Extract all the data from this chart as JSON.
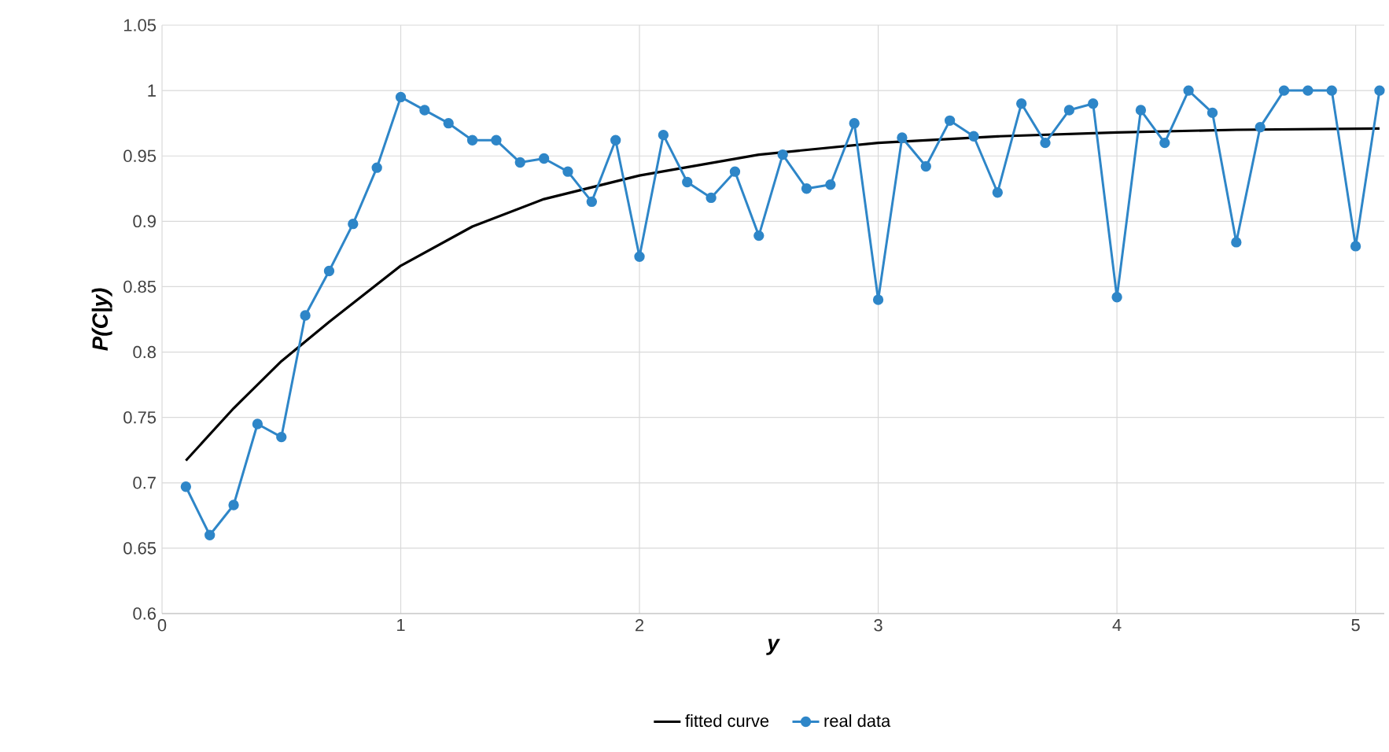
{
  "chart_data": {
    "type": "line",
    "xlabel": "y",
    "ylabel": "P(C|y)",
    "xlim": [
      0,
      5.12
    ],
    "ylim": [
      0.6,
      1.05
    ],
    "xticks": [
      0,
      1,
      2,
      3,
      4,
      5
    ],
    "yticks": [
      0.6,
      0.65,
      0.7,
      0.75,
      0.8,
      0.85,
      0.9,
      0.95,
      1,
      1.05
    ],
    "grid": true,
    "legend": "bottom",
    "series": [
      {
        "name": "fitted curve",
        "color": "#000000",
        "marker": "none",
        "x": [
          0.1,
          0.3,
          0.5,
          0.7,
          1.0,
          1.3,
          1.6,
          2.0,
          2.5,
          3.0,
          3.5,
          4.0,
          4.5,
          5.1
        ],
        "values": [
          0.717,
          0.757,
          0.793,
          0.823,
          0.866,
          0.896,
          0.917,
          0.935,
          0.951,
          0.96,
          0.965,
          0.968,
          0.97,
          0.971
        ]
      },
      {
        "name": "real data",
        "color": "#2e86c8",
        "marker": "circle",
        "x": [
          0.1,
          0.2,
          0.3,
          0.4,
          0.5,
          0.6,
          0.7,
          0.8,
          0.9,
          1.0,
          1.1,
          1.2,
          1.3,
          1.4,
          1.5,
          1.6,
          1.7,
          1.8,
          1.9,
          2.0,
          2.1,
          2.2,
          2.3,
          2.4,
          2.5,
          2.6,
          2.7,
          2.8,
          2.9,
          3.0,
          3.1,
          3.2,
          3.3,
          3.4,
          3.5,
          3.6,
          3.7,
          3.8,
          3.9,
          4.0,
          4.1,
          4.2,
          4.3,
          4.4,
          4.5,
          4.6,
          4.7,
          4.8,
          4.9,
          5.0,
          5.1
        ],
        "values": [
          0.697,
          0.66,
          0.683,
          0.745,
          0.735,
          0.828,
          0.862,
          0.898,
          0.941,
          0.995,
          0.985,
          0.975,
          0.962,
          0.962,
          0.945,
          0.948,
          0.938,
          0.915,
          0.962,
          0.873,
          0.966,
          0.93,
          0.918,
          0.938,
          0.889,
          0.951,
          0.925,
          0.928,
          0.975,
          0.84,
          0.964,
          0.942,
          0.977,
          0.965,
          0.922,
          0.99,
          0.96,
          0.985,
          0.99,
          0.842,
          0.985,
          0.96,
          1.0,
          0.983,
          0.884,
          0.972,
          1.0,
          1.0,
          1.0,
          0.881,
          1.0
        ]
      }
    ]
  }
}
